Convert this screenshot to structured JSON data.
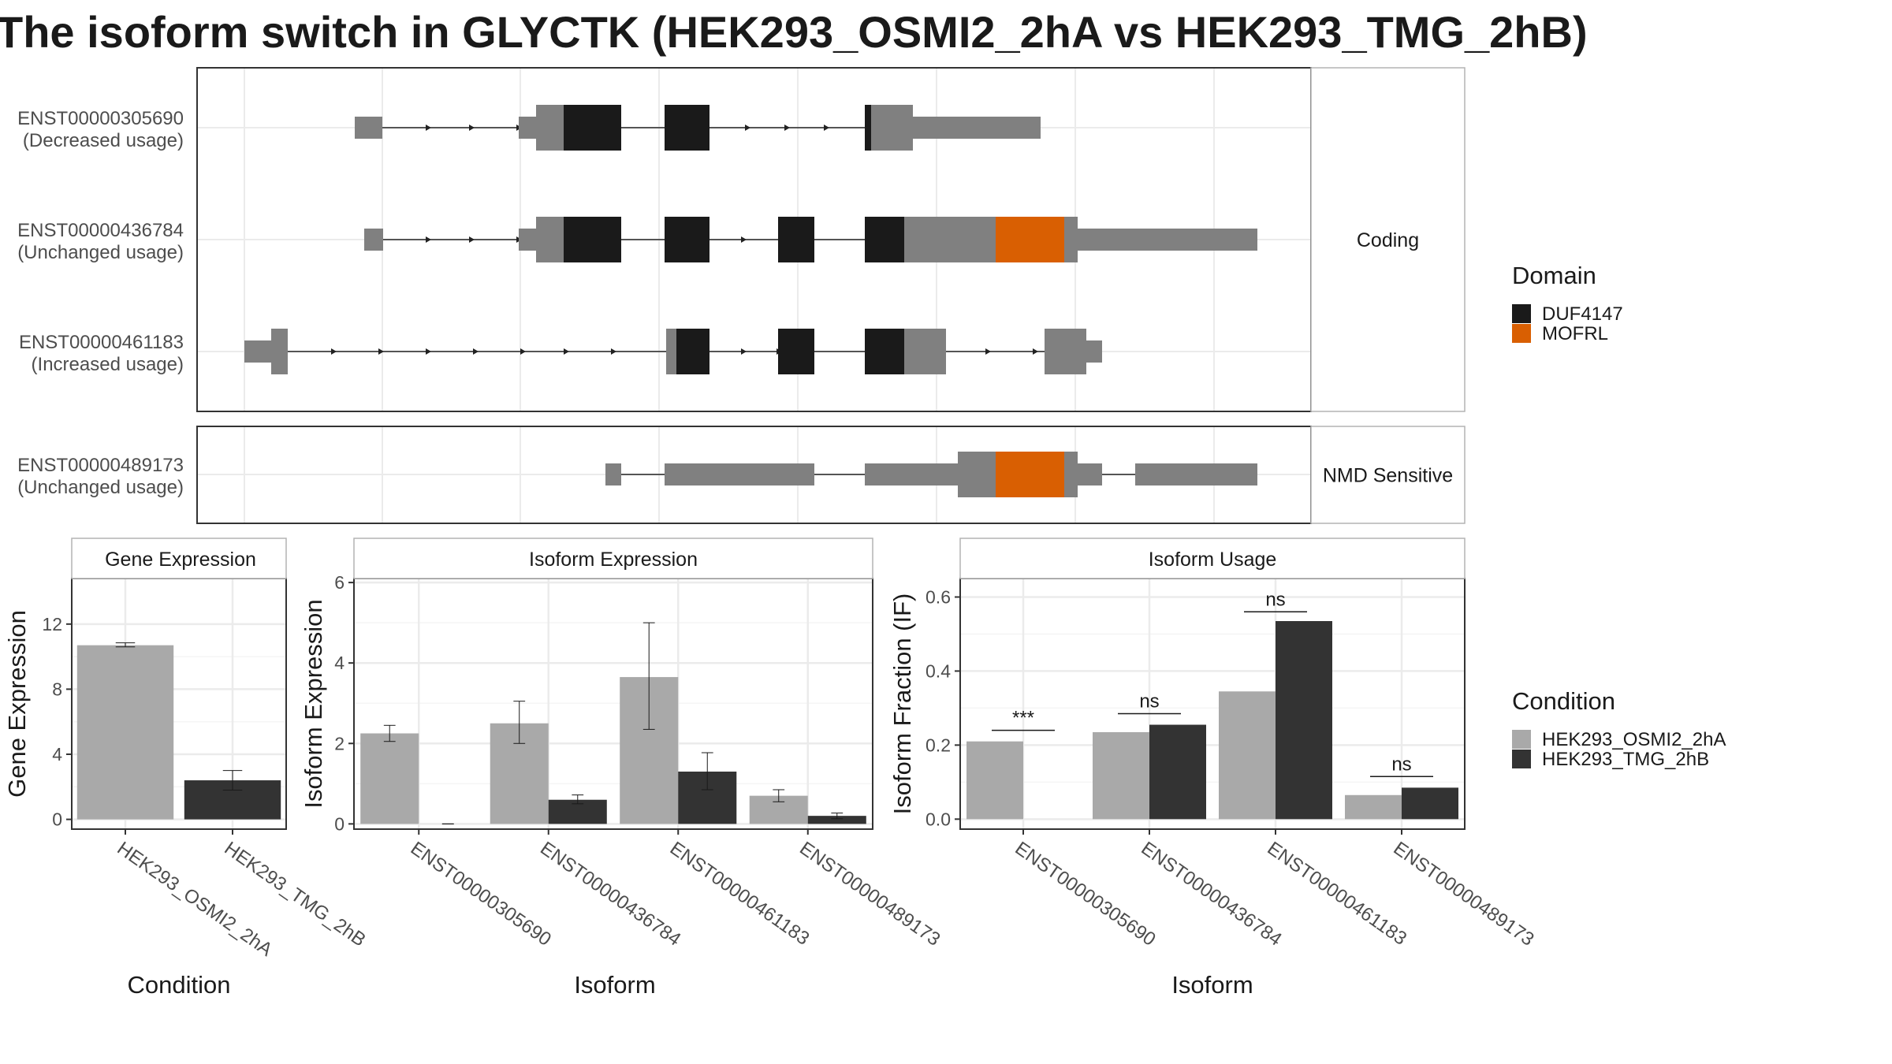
{
  "title": "The isoform switch in GLYCTK (HEK293_OSMI2_2hA vs HEK293_TMG_2hB)",
  "colors": {
    "utr": "#808080",
    "intron": "#222222",
    "panel_border": "#333333",
    "strip_border": "#b3b3b3",
    "grid": "#ebebeb",
    "cond_a": "#a9a9a9",
    "cond_b": "#333333"
  },
  "domain_legend": {
    "title": "Domain",
    "items": [
      {
        "label": "DUF4147",
        "color": "#1a1a1a"
      },
      {
        "label": "MOFRL",
        "color": "#d95f02"
      }
    ]
  },
  "condition_legend": {
    "title": "Condition",
    "items": [
      {
        "label": "HEK293_OSMI2_2hA",
        "color": "#a9a9a9"
      },
      {
        "label": "HEK293_TMG_2hB",
        "color": "#333333"
      }
    ]
  },
  "structure_groups": [
    {
      "label": "Coding",
      "transcripts": [
        0,
        1,
        2
      ]
    },
    {
      "label": "NMD Sensitive",
      "transcripts": [
        3
      ]
    }
  ],
  "transcripts": [
    {
      "id": "ENST00000305690",
      "usage": "(Decreased usage)",
      "intron": [
        450,
        1105
      ],
      "arrows": [
        545,
        600,
        660,
        950,
        1000,
        1050
      ],
      "blocks": [
        {
          "s": 450,
          "e": 485,
          "k": "utr"
        },
        {
          "s": 658,
          "e": 680,
          "k": "utr"
        },
        {
          "s": 680,
          "e": 715,
          "k": "cds"
        },
        {
          "s": 715,
          "e": 788,
          "k": "duf"
        },
        {
          "s": 843,
          "e": 900,
          "k": "duf"
        },
        {
          "s": 1097,
          "e": 1105,
          "k": "duf"
        },
        {
          "s": 1105,
          "e": 1158,
          "k": "cds"
        },
        {
          "s": 1158,
          "e": 1320,
          "k": "utr"
        }
      ]
    },
    {
      "id": "ENST00000436784",
      "usage": "(Unchanged usage)",
      "intron": [
        462,
        1100
      ],
      "arrows": [
        545,
        600,
        660,
        945,
        1030
      ],
      "blocks": [
        {
          "s": 462,
          "e": 486,
          "k": "utr"
        },
        {
          "s": 658,
          "e": 680,
          "k": "utr"
        },
        {
          "s": 680,
          "e": 715,
          "k": "cds"
        },
        {
          "s": 715,
          "e": 788,
          "k": "duf"
        },
        {
          "s": 843,
          "e": 900,
          "k": "duf"
        },
        {
          "s": 987,
          "e": 1033,
          "k": "duf"
        },
        {
          "s": 1097,
          "e": 1147,
          "k": "duf"
        },
        {
          "s": 1147,
          "e": 1263,
          "k": "cds"
        },
        {
          "s": 1263,
          "e": 1350,
          "k": "mofrl"
        },
        {
          "s": 1350,
          "e": 1367,
          "k": "cds"
        },
        {
          "s": 1367,
          "e": 1595,
          "k": "utr"
        }
      ]
    },
    {
      "id": "ENST00000461183",
      "usage": "(Increased usage)",
      "intron": [
        310,
        1330
      ],
      "arrows": [
        425,
        485,
        545,
        605,
        665,
        720,
        780,
        945,
        990,
        1255,
        1315
      ],
      "blocks": [
        {
          "s": 310,
          "e": 344,
          "k": "utr"
        },
        {
          "s": 344,
          "e": 365,
          "k": "cds"
        },
        {
          "s": 845,
          "e": 858,
          "k": "cds"
        },
        {
          "s": 858,
          "e": 900,
          "k": "duf"
        },
        {
          "s": 987,
          "e": 1033,
          "k": "duf"
        },
        {
          "s": 1097,
          "e": 1147,
          "k": "duf"
        },
        {
          "s": 1147,
          "e": 1200,
          "k": "cds"
        },
        {
          "s": 1325,
          "e": 1378,
          "k": "cds"
        },
        {
          "s": 1378,
          "e": 1398,
          "k": "utr"
        }
      ]
    },
    {
      "id": "ENST00000489173",
      "usage": "(Unchanged usage)",
      "intron": [
        768,
        1440
      ],
      "arrows": [],
      "blocks": [
        {
          "s": 768,
          "e": 788,
          "k": "utr"
        },
        {
          "s": 843,
          "e": 1033,
          "k": "utr"
        },
        {
          "s": 1097,
          "e": 1215,
          "k": "utr"
        },
        {
          "s": 1215,
          "e": 1263,
          "k": "cds"
        },
        {
          "s": 1263,
          "e": 1350,
          "k": "mofrl"
        },
        {
          "s": 1350,
          "e": 1367,
          "k": "cds"
        },
        {
          "s": 1367,
          "e": 1398,
          "k": "utr"
        },
        {
          "s": 1440,
          "e": 1595,
          "k": "utr"
        }
      ]
    }
  ],
  "chart_data": [
    {
      "type": "bar",
      "title": "Gene Expression",
      "xlabel": "Condition",
      "ylabel": "Gene Expression",
      "categories": [
        "HEK293_OSMI2_2hA",
        "HEK293_TMG_2hB"
      ],
      "values": [
        10.7,
        2.4
      ],
      "errors": [
        [
          10.6,
          10.85
        ],
        [
          1.8,
          3.0
        ]
      ],
      "ylim": [
        -0.6,
        14.8
      ],
      "yticks": [
        0,
        4,
        8,
        12
      ]
    },
    {
      "type": "bar",
      "title": "Isoform Expression",
      "xlabel": "Isoform",
      "ylabel": "Isoform Expression",
      "categories": [
        "ENST00000305690",
        "ENST00000436784",
        "ENST00000461183",
        "ENST00000489173"
      ],
      "ylim": [
        -0.13,
        6.1
      ],
      "yticks": [
        0,
        2,
        4,
        6
      ],
      "series": [
        {
          "name": "HEK293_OSMI2_2hA",
          "values": [
            2.25,
            2.5,
            3.65,
            0.7
          ],
          "errors": [
            [
              2.05,
              2.45
            ],
            [
              2.0,
              3.05
            ],
            [
              2.35,
              5.0
            ],
            [
              0.55,
              0.85
            ]
          ]
        },
        {
          "name": "HEK293_TMG_2hB",
          "values": [
            0.0,
            0.6,
            1.3,
            0.2
          ],
          "errors": [
            [
              0.0,
              0.0
            ],
            [
              0.5,
              0.72
            ],
            [
              0.85,
              1.77
            ],
            [
              0.13,
              0.27
            ]
          ]
        }
      ]
    },
    {
      "type": "bar",
      "title": "Isoform Usage",
      "xlabel": "Isoform",
      "ylabel": "Isoform Fraction (IF)",
      "categories": [
        "ENST00000305690",
        "ENST00000436784",
        "ENST00000461183",
        "ENST00000489173"
      ],
      "ylim": [
        -0.027,
        0.65
      ],
      "yticks": [
        0.0,
        0.2,
        0.4,
        0.6
      ],
      "series": [
        {
          "name": "HEK293_OSMI2_2hA",
          "values": [
            0.21,
            0.235,
            0.345,
            0.065
          ]
        },
        {
          "name": "HEK293_TMG_2hB",
          "values": [
            0.0,
            0.255,
            0.535,
            0.085
          ]
        }
      ],
      "significance": [
        "***",
        "ns",
        "ns",
        "ns"
      ],
      "sig_y": [
        0.24,
        0.285,
        0.56,
        0.115
      ]
    }
  ]
}
